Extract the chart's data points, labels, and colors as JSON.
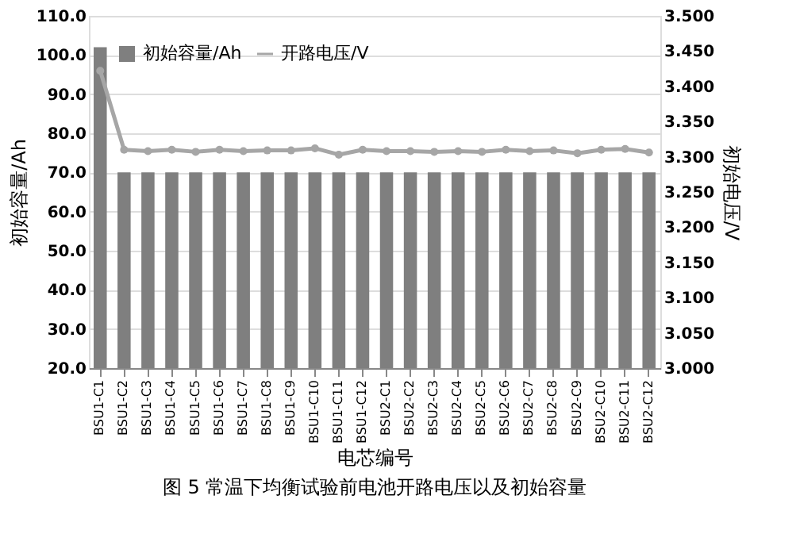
{
  "chart_data": {
    "type": "bar",
    "title": "图 5  常温下均衡试验前电池开路电压以及初始容量",
    "xlabel": "电芯编号",
    "ylabel": "初始容量/Ah",
    "y2label": "初始电压/V",
    "categories": [
      "BSU1-C1",
      "BSU1-C2",
      "BSU1-C3",
      "BSU1-C4",
      "BSU1-C5",
      "BSU1-C6",
      "BSU1-C7",
      "BSU1-C8",
      "BSU1-C9",
      "BSU1-C10",
      "BSU1-C11",
      "BSU1-C12",
      "BSU2-C1",
      "BSU2-C2",
      "BSU2-C3",
      "BSU2-C4",
      "BSU2-C5",
      "BSU2-C6",
      "BSU2-C7",
      "BSU2-C8",
      "BSU2-C9",
      "BSU2-C10",
      "BSU2-C11",
      "BSU2-C12"
    ],
    "series": [
      {
        "name": "初始容量/Ah",
        "color": "#7f7f7f",
        "values": [
          102,
          70,
          70,
          70,
          70,
          70,
          70,
          70,
          70,
          70,
          70,
          70,
          70,
          70,
          70,
          70,
          70,
          70,
          70,
          70,
          70,
          70,
          70,
          70
        ]
      },
      {
        "name": "开路电压/V",
        "type": "line",
        "axis": "y2",
        "color": "#a6a6a6",
        "marker": "circle",
        "line_style": "solid",
        "values": [
          3.422,
          3.31,
          3.308,
          3.31,
          3.307,
          3.31,
          3.308,
          3.309,
          3.309,
          3.312,
          3.303,
          3.31,
          3.308,
          3.308,
          3.307,
          3.308,
          3.307,
          3.31,
          3.308,
          3.309,
          3.305,
          3.31,
          3.311,
          3.306
        ]
      }
    ],
    "ylim": [
      20,
      110
    ],
    "yticks": [
      {
        "value": 20,
        "label": "20.0"
      },
      {
        "value": 30,
        "label": "30.0"
      },
      {
        "value": 40,
        "label": "40.0"
      },
      {
        "value": 50,
        "label": "50.0"
      },
      {
        "value": 60,
        "label": "60.0"
      },
      {
        "value": 70,
        "label": "70.0"
      },
      {
        "value": 80,
        "label": "80.0"
      },
      {
        "value": 90,
        "label": "90.0"
      },
      {
        "value": 100,
        "label": "100.0"
      },
      {
        "value": 110,
        "label": "110.0"
      }
    ],
    "y2lim": [
      3.0,
      3.5
    ],
    "y2ticks": [
      {
        "value": 3.0,
        "label": "3.000"
      },
      {
        "value": 3.05,
        "label": "3.050"
      },
      {
        "value": 3.1,
        "label": "3.100"
      },
      {
        "value": 3.15,
        "label": "3.150"
      },
      {
        "value": 3.2,
        "label": "3.200"
      },
      {
        "value": 3.25,
        "label": "3.250"
      },
      {
        "value": 3.3,
        "label": "3.300"
      },
      {
        "value": 3.35,
        "label": "3.350"
      },
      {
        "value": 3.4,
        "label": "3.400"
      },
      {
        "value": 3.45,
        "label": "3.450"
      },
      {
        "value": 3.5,
        "label": "3.500"
      }
    ],
    "grid": "y",
    "legend": "top left"
  }
}
